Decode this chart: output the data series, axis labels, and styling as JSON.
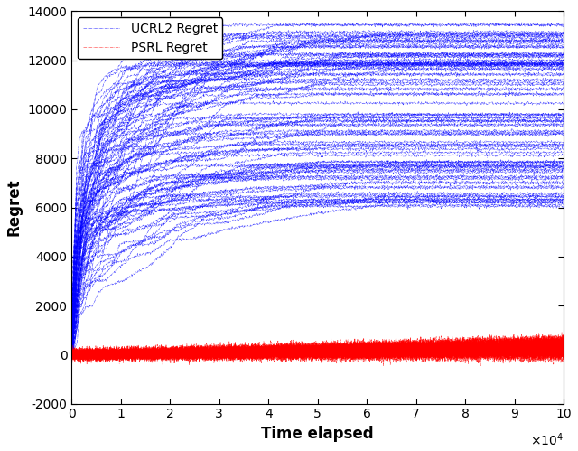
{
  "title": "",
  "xlabel": "Time elapsed",
  "ylabel": "Regret",
  "xlim": [
    0,
    100000
  ],
  "ylim": [
    -2000,
    14000
  ],
  "yticks": [
    -2000,
    0,
    2000,
    4000,
    6000,
    8000,
    10000,
    12000,
    14000
  ],
  "xticks": [
    0,
    10000,
    20000,
    30000,
    40000,
    50000,
    60000,
    70000,
    80000,
    90000,
    100000
  ],
  "xtick_labels": [
    "0",
    "1",
    "2",
    "3",
    "4",
    "5",
    "6",
    "7",
    "8",
    "9",
    "10"
  ],
  "psrl_color": "#FF0000",
  "ucrl2_color": "#0000FF",
  "n_psrl": 100,
  "n_ucrl2": 100,
  "T": 100000,
  "seed": 7,
  "legend_psrl": "PSRL Regret",
  "legend_ucrl2": "UCRL2 Regret",
  "linewidth": 0.4,
  "alpha": 0.8
}
